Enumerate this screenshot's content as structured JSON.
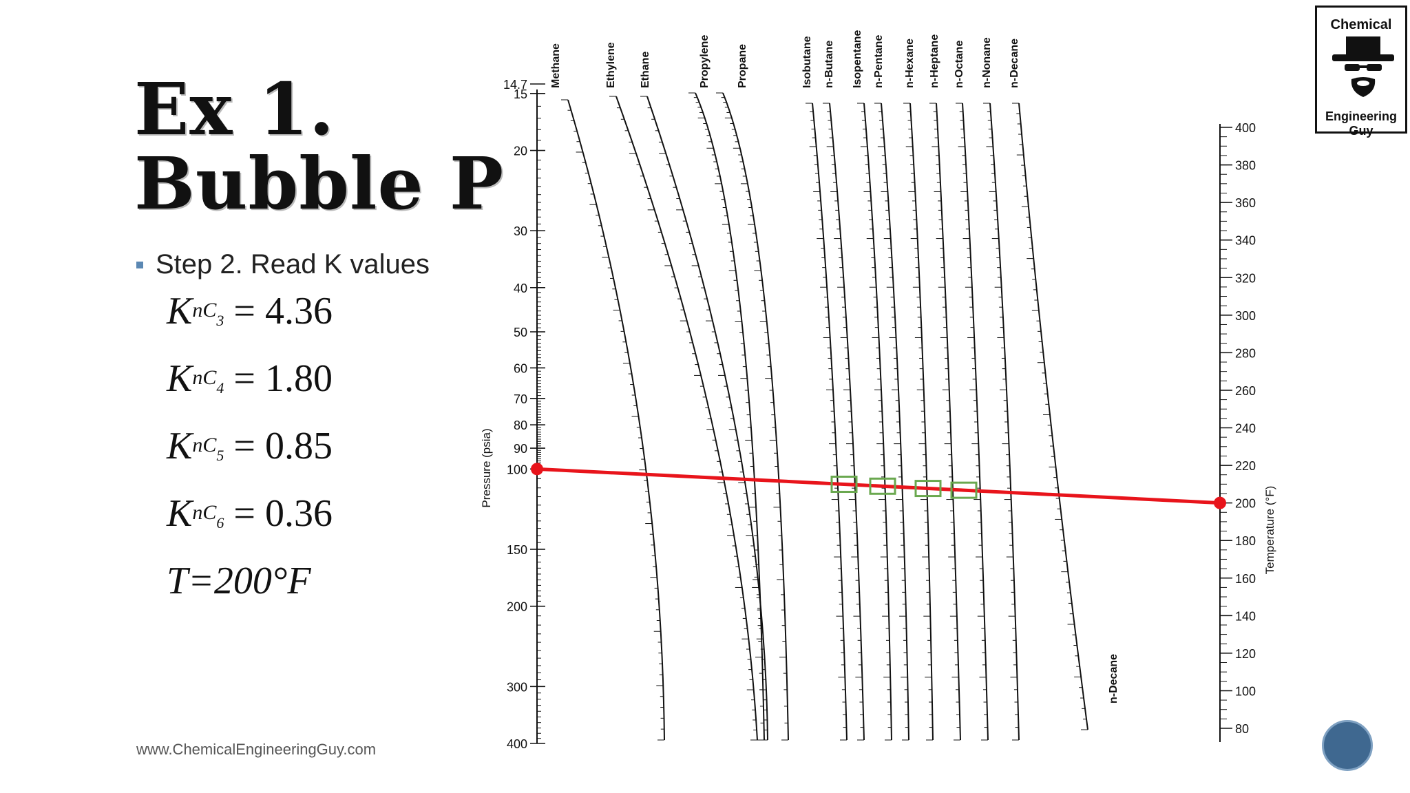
{
  "slide": {
    "title_line1": "Ex 1.",
    "title_line2": "Bubble P",
    "bullet": "Step 2. Read K values",
    "equations": [
      {
        "k": "K",
        "sub": "nC",
        "subsub": "3",
        "value": "= 4.36"
      },
      {
        "k": "K",
        "sub": "nC",
        "subsub": "4",
        "value": "= 1.80"
      },
      {
        "k": "K",
        "sub": "nC",
        "subsub": "5",
        "value": "= 0.85"
      },
      {
        "k": "K",
        "sub": "nC",
        "subsub": "6",
        "value": "= 0.36"
      }
    ],
    "temperature": "T=200°F",
    "footer_url": "www.ChemicalEngineeringGuy.com"
  },
  "logo": {
    "line1": "Chemical",
    "line2": "Engineering Guy"
  },
  "nomograph": {
    "pressure_axis_label": "Pressure (psia)",
    "pressure_ticks": [
      "14.7",
      "15",
      "20",
      "30",
      "40",
      "50",
      "60",
      "70",
      "80",
      "90",
      "100",
      "150",
      "200",
      "300",
      "400"
    ],
    "temperature_axis_label": "Temperature (°F)",
    "temperature_ticks": [
      "400",
      "380",
      "360",
      "340",
      "320",
      "300",
      "280",
      "260",
      "240",
      "220",
      "200",
      "180",
      "160",
      "140",
      "120",
      "100",
      "80"
    ],
    "components": [
      "Methane",
      "Ethylene",
      "Ethane",
      "Propylene",
      "Propane",
      "Isobutane",
      "n-Butane",
      "Isopentane",
      "n-Pentane",
      "n-Hexane",
      "n-Heptane",
      "n-Octane",
      "n-Nonane",
      "n-Decane"
    ],
    "bottom_label": "n-Decane",
    "reading": {
      "pressure_psia": 100,
      "temperature_F": 200
    },
    "colors": {
      "line": "#e8141b",
      "highlight": "#6aa84f",
      "ink": "#111111"
    }
  }
}
